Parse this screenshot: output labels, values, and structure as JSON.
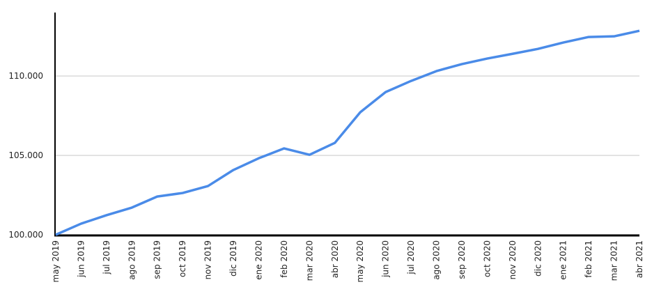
{
  "chart_data": {
    "type": "line",
    "categories": [
      "may 2019",
      "jun 2019",
      "jul 2019",
      "ago 2019",
      "sep 2019",
      "oct 2019",
      "nov 2019",
      "dic 2019",
      "ene 2020",
      "feb 2020",
      "mar 2020",
      "abr 2020",
      "may 2020",
      "jun 2020",
      "jul 2020",
      "ago 2020",
      "sep 2020",
      "oct 2020",
      "nov 2020",
      "dic 2020",
      "ene 2021",
      "feb 2021",
      "mar 2021",
      "abr 2021"
    ],
    "series": [
      {
        "color": "#4a8be8",
        "values": [
          100.0,
          100.7,
          101.23,
          101.71,
          102.41,
          102.63,
          103.07,
          104.08,
          104.82,
          105.44,
          105.04,
          105.79,
          107.72,
          108.99,
          109.69,
          110.31,
          110.75,
          111.1,
          111.4,
          111.71,
          112.11,
          112.46,
          112.5,
          112.85
        ]
      }
    ],
    "ylim": [
      100,
      114
    ],
    "yticks": [
      {
        "value": 100,
        "label": "100.000"
      },
      {
        "value": 105,
        "label": "105.000"
      },
      {
        "value": 110,
        "label": "110.000"
      }
    ],
    "grid": true
  }
}
